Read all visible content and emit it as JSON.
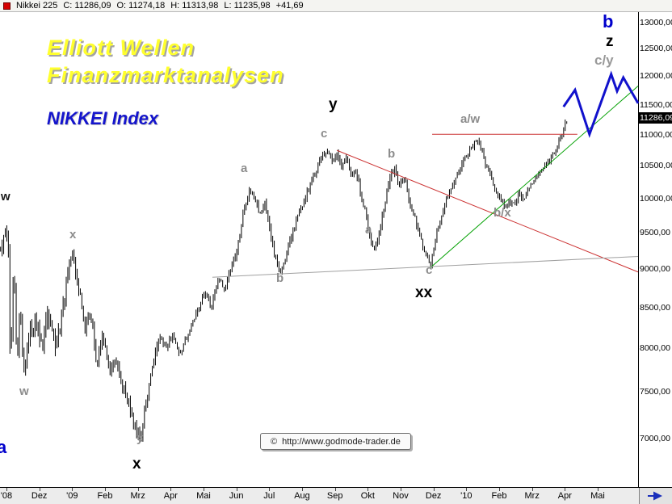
{
  "quote_bar": {
    "symbol": "Nikkei 225",
    "close": "C: 11286,09",
    "open": "O: 11274,18",
    "high": "H: 11313,98",
    "low": "L: 11235,98",
    "change": "+41,69"
  },
  "overlay": {
    "title_line1": "Elliott Wellen",
    "title_line2": "Finanzmarktanalysen",
    "subtitle": "NIKKEI Index",
    "copyright_symbol": "©",
    "watermark_url": "http://www.godmode-trader.de"
  },
  "colors": {
    "bars": "#000000",
    "projection_blue": "#1111cc",
    "trend_red": "#cc3333",
    "trend_green": "#00a000",
    "trend_gray": "#a0a0a0",
    "title_yellow": "#ffff2e",
    "title_blue": "#1414cc"
  },
  "chart_data": {
    "type": "ohlc-bar",
    "instrument": "Nikkei 225",
    "last_price": 11286.09,
    "last_price_label": "11286,09",
    "y_scale": "log",
    "grid": false,
    "series": {
      "note": "swing keypoints read from chart: [months since Nov 2008, price]",
      "start_month": -0.18,
      "bars_per_month": 21,
      "bar_count": 363,
      "seed": 3,
      "keypoints": [
        [
          -0.15,
          9270
        ],
        [
          -0.05,
          9560
        ],
        [
          0.05,
          9390
        ],
        [
          0.12,
          7690
        ],
        [
          0.22,
          9060
        ],
        [
          0.32,
          7920
        ],
        [
          0.42,
          8460
        ],
        [
          0.54,
          7690
        ],
        [
          0.69,
          8120
        ],
        [
          0.89,
          8360
        ],
        [
          1.08,
          8020
        ],
        [
          1.28,
          8410
        ],
        [
          1.48,
          8070
        ],
        [
          1.67,
          8360
        ],
        [
          1.87,
          8950
        ],
        [
          2.02,
          9230
        ],
        [
          2.19,
          8790
        ],
        [
          2.39,
          8270
        ],
        [
          2.56,
          8470
        ],
        [
          2.75,
          7830
        ],
        [
          2.95,
          8170
        ],
        [
          3.15,
          7690
        ],
        [
          3.32,
          7880
        ],
        [
          3.49,
          7600
        ],
        [
          3.69,
          7420
        ],
        [
          3.88,
          7160
        ],
        [
          4.08,
          6990
        ],
        [
          4.25,
          7380
        ],
        [
          4.47,
          7880
        ],
        [
          4.67,
          8120
        ],
        [
          4.87,
          8020
        ],
        [
          5.06,
          8170
        ],
        [
          5.26,
          7920
        ],
        [
          5.46,
          8120
        ],
        [
          5.65,
          8320
        ],
        [
          5.85,
          8520
        ],
        [
          6.05,
          8680
        ],
        [
          6.24,
          8520
        ],
        [
          6.44,
          8890
        ],
        [
          6.64,
          8730
        ],
        [
          6.83,
          9050
        ],
        [
          7.03,
          9280
        ],
        [
          7.23,
          9840
        ],
        [
          7.42,
          10140
        ],
        [
          7.57,
          9960
        ],
        [
          7.72,
          9780
        ],
        [
          7.87,
          9960
        ],
        [
          8.01,
          9550
        ],
        [
          8.19,
          9160
        ],
        [
          8.36,
          8940
        ],
        [
          8.53,
          9210
        ],
        [
          8.7,
          9490
        ],
        [
          8.9,
          9780
        ],
        [
          9.1,
          10020
        ],
        [
          9.29,
          10260
        ],
        [
          9.49,
          10510
        ],
        [
          9.64,
          10700
        ],
        [
          9.79,
          10760
        ],
        [
          9.93,
          10570
        ],
        [
          10.06,
          10720
        ],
        [
          10.2,
          10510
        ],
        [
          10.35,
          10640
        ],
        [
          10.5,
          10320
        ],
        [
          10.65,
          10450
        ],
        [
          10.79,
          10020
        ],
        [
          10.94,
          9780
        ],
        [
          11.09,
          9390
        ],
        [
          11.21,
          9280
        ],
        [
          11.36,
          9550
        ],
        [
          11.53,
          9960
        ],
        [
          11.7,
          10390
        ],
        [
          11.83,
          10450
        ],
        [
          11.97,
          10200
        ],
        [
          12.12,
          10300
        ],
        [
          12.29,
          9900
        ],
        [
          12.47,
          9670
        ],
        [
          12.64,
          9390
        ],
        [
          12.79,
          9190
        ],
        [
          12.91,
          9060
        ],
        [
          13.06,
          9440
        ],
        [
          13.23,
          9720
        ],
        [
          13.4,
          10020
        ],
        [
          13.57,
          10200
        ],
        [
          13.74,
          10390
        ],
        [
          13.92,
          10570
        ],
        [
          14.06,
          10700
        ],
        [
          14.21,
          10830
        ],
        [
          14.33,
          10930
        ],
        [
          14.46,
          10760
        ],
        [
          14.6,
          10510
        ],
        [
          14.75,
          10320
        ],
        [
          14.9,
          10080
        ],
        [
          15.05,
          9960
        ],
        [
          15.19,
          9870
        ],
        [
          15.34,
          9960
        ],
        [
          15.47,
          9900
        ],
        [
          15.61,
          10080
        ],
        [
          15.76,
          10020
        ],
        [
          15.91,
          10180
        ],
        [
          16.06,
          10260
        ],
        [
          16.2,
          10390
        ],
        [
          16.35,
          10480
        ],
        [
          16.5,
          10570
        ],
        [
          16.62,
          10670
        ],
        [
          16.72,
          10790
        ],
        [
          16.82,
          10890
        ],
        [
          16.92,
          11050
        ],
        [
          17.02,
          11200
        ],
        [
          17.09,
          11260
        ],
        [
          17.2,
          11286
        ]
      ],
      "volatility_tiers": [
        {
          "until": 2.2,
          "v": 0.021
        },
        {
          "until": 4.6,
          "v": 0.014
        },
        {
          "until": 13,
          "v": 0.0095
        },
        {
          "until": 99,
          "v": 0.008
        }
      ]
    },
    "trendlines": [
      {
        "name": "resistance-downtrend",
        "color": "#cc3333",
        "width": 1,
        "points": [
          [
            10.06,
            10750
          ],
          [
            19.23,
            8970
          ]
        ]
      },
      {
        "name": "horizontal-resistance",
        "color": "#cc3333",
        "width": 1,
        "points": [
          [
            12.96,
            11010
          ],
          [
            17.38,
            11010
          ]
        ]
      },
      {
        "name": "support-uptrend",
        "color": "#00a000",
        "width": 1,
        "points": [
          [
            12.91,
            9030
          ],
          [
            19.23,
            11830
          ]
        ]
      },
      {
        "name": "long-term-support",
        "color": "#a0a0a0",
        "width": 1,
        "points": [
          [
            6.27,
            8900
          ],
          [
            19.23,
            9180
          ]
        ]
      }
    ],
    "projection": {
      "color": "#1111cc",
      "width": 3,
      "points": [
        [
          16.96,
          11470
        ],
        [
          17.31,
          11760
        ],
        [
          17.75,
          11010
        ],
        [
          18.41,
          12040
        ],
        [
          18.59,
          11740
        ],
        [
          18.78,
          11980
        ],
        [
          19.23,
          11530
        ]
      ]
    },
    "annotations": [
      {
        "t": "w",
        "x": 1,
        "y": 236,
        "c": "#1a1a1a",
        "s": 15
      },
      {
        "t": "w",
        "x": 24,
        "y": 477,
        "c": "#8c8c8c",
        "s": 15
      },
      {
        "t": "x",
        "x": 86,
        "y": 283,
        "c": "#8c8c8c",
        "s": 15
      },
      {
        "t": "y",
        "x": 169,
        "y": 535,
        "c": "#8c8c8c",
        "s": 15
      },
      {
        "t": "x",
        "x": 164,
        "y": 565,
        "c": "#000000",
        "s": 19
      },
      {
        "t": "a",
        "x": 298,
        "y": 201,
        "c": "#8c8c8c",
        "s": 15
      },
      {
        "t": "b",
        "x": 342,
        "y": 337,
        "c": "#8c8c8c",
        "s": 15
      },
      {
        "t": "c",
        "x": 397,
        "y": 158,
        "c": "#8c8c8c",
        "s": 15
      },
      {
        "t": "y",
        "x": 407,
        "y": 120,
        "c": "#000000",
        "s": 19
      },
      {
        "t": "a",
        "x": 452,
        "y": 277,
        "c": "#8c8c8c",
        "s": 15
      },
      {
        "t": "b",
        "x": 480,
        "y": 183,
        "c": "#8c8c8c",
        "s": 15
      },
      {
        "t": "c",
        "x": 527,
        "y": 327,
        "c": "#8c8c8c",
        "s": 15
      },
      {
        "t": "xx",
        "x": 514,
        "y": 353,
        "c": "#000000",
        "s": 19
      },
      {
        "t": "a/w",
        "x": 570,
        "y": 140,
        "c": "#8c8c8c",
        "s": 15
      },
      {
        "t": "b/x",
        "x": 611,
        "y": 256,
        "c": "#8c8c8c",
        "s": 15
      },
      {
        "t": "c/y",
        "x": 736,
        "y": 66,
        "c": "#999999",
        "s": 17
      },
      {
        "t": "z",
        "x": 750,
        "y": 42,
        "c": "#000000",
        "s": 19
      },
      {
        "t": "b",
        "x": 746,
        "y": 16,
        "c": "#0000cc",
        "s": 22
      },
      {
        "t": "a",
        "x": -4,
        "y": 543,
        "c": "#0000cc",
        "s": 22
      }
    ],
    "y_axis": {
      "position": "right",
      "ticks": [
        {
          "p": 13000,
          "label": "13000,00"
        },
        {
          "p": 12500,
          "label": "12500,00"
        },
        {
          "p": 12000,
          "label": "12000,00"
        },
        {
          "p": 11500,
          "label": "11500,00"
        },
        {
          "p": 11000,
          "label": "11000,00"
        },
        {
          "p": 10500,
          "label": "10500,00"
        },
        {
          "p": 10000,
          "label": "10000,00"
        },
        {
          "p": 9500,
          "label": "9500,00"
        },
        {
          "p": 9000,
          "label": "9000,00"
        },
        {
          "p": 8500,
          "label": "8500,00"
        },
        {
          "p": 8000,
          "label": "8000,00"
        },
        {
          "p": 7500,
          "label": "7500,00"
        },
        {
          "p": 7000,
          "label": "7000,00"
        }
      ]
    },
    "x_axis": {
      "labels": [
        {
          "m": 0,
          "label": "'08"
        },
        {
          "m": 1,
          "label": "Dez"
        },
        {
          "m": 2,
          "label": "'09"
        },
        {
          "m": 3,
          "label": "Feb"
        },
        {
          "m": 4,
          "label": "Mrz"
        },
        {
          "m": 5,
          "label": "Apr"
        },
        {
          "m": 6,
          "label": "Mai"
        },
        {
          "m": 7,
          "label": "Jun"
        },
        {
          "m": 8,
          "label": "Jul"
        },
        {
          "m": 9,
          "label": "Aug"
        },
        {
          "m": 10,
          "label": "Sep"
        },
        {
          "m": 11,
          "label": "Okt"
        },
        {
          "m": 12,
          "label": "Nov"
        },
        {
          "m": 13,
          "label": "Dez"
        },
        {
          "m": 14,
          "label": "'10"
        },
        {
          "m": 15,
          "label": "Feb"
        },
        {
          "m": 16,
          "label": "Mrz"
        },
        {
          "m": 17,
          "label": "Apr"
        },
        {
          "m": 18,
          "label": "Mai"
        }
      ]
    }
  }
}
